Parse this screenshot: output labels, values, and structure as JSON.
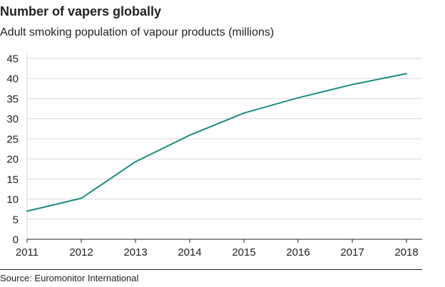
{
  "title": "Number of vapers globally",
  "subtitle": "Adult smoking population of vapour products (millions)",
  "source": "Source: Euromonitor International",
  "colors": {
    "line": "#1b8a80",
    "grid": "#d9d9d9",
    "axis": "#222222"
  },
  "chart_data": {
    "type": "line",
    "x": [
      "2011",
      "2012",
      "2013",
      "2014",
      "2015",
      "2016",
      "2017",
      "2018"
    ],
    "series": [
      {
        "values": [
          7.0,
          10.2,
          19.3,
          25.9,
          31.4,
          35.2,
          38.5,
          41.2
        ]
      }
    ],
    "yticks": [
      0,
      5,
      10,
      15,
      20,
      25,
      30,
      35,
      40,
      45
    ],
    "ylim": [
      0,
      45
    ],
    "grid": true,
    "xlabel": "",
    "ylabel": ""
  }
}
